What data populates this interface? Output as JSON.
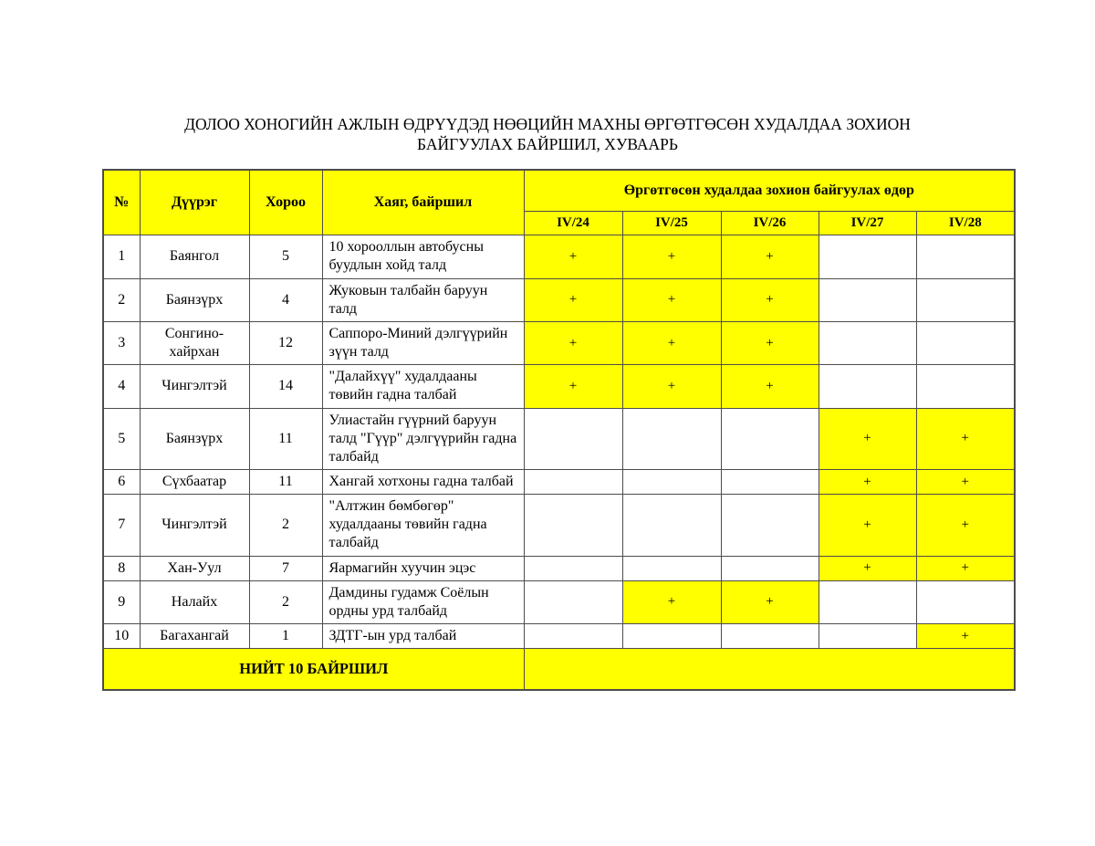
{
  "title": "ДОЛОО ХОНОГИЙН АЖЛЫН ӨДРҮҮДЭД НӨӨЦИЙН МАХНЫ ӨРГӨТГӨСӨН ХУДАЛДАА ЗОХИОН БАЙГУУЛАХ БАЙРШИЛ, ХУВААРЬ",
  "table": {
    "columns": {
      "no": "№",
      "district": "Дүүрэг",
      "khoroo": "Хороо",
      "address": "Хаяг, байршил",
      "days_group": "Өргөтгөсөн худалдаа зохион байгуулах өдөр"
    },
    "day_columns": [
      "IV/24",
      "IV/25",
      "IV/26",
      "IV/27",
      "IV/28"
    ],
    "mark_symbol": "+",
    "rows": [
      {
        "no": "1",
        "district": "Баянгол",
        "khoroo": "5",
        "address": "10 хорооллын автобусны буудлын хойд талд",
        "days": [
          "+",
          "+",
          "+",
          "",
          ""
        ]
      },
      {
        "no": "2",
        "district": "Баянзүрх",
        "khoroo": "4",
        "address": "Жуковын талбайн баруун талд",
        "days": [
          "+",
          "+",
          "+",
          "",
          ""
        ]
      },
      {
        "no": "3",
        "district": "Сонгино-хайрхан",
        "khoroo": "12",
        "address": "Саппоро-Миний дэлгүүрийн зүүн талд",
        "days": [
          "+",
          "+",
          "+",
          "",
          ""
        ]
      },
      {
        "no": "4",
        "district": "Чингэлтэй",
        "khoroo": "14",
        "address": "\"Далайхүү\" худалдааны төвийн гадна талбай",
        "days": [
          "+",
          "+",
          "+",
          "",
          ""
        ]
      },
      {
        "no": "5",
        "district": "Баянзүрх",
        "khoroo": "11",
        "address": "Улиастайн гүүрний баруун талд \"Гүүр\" дэлгүүрийн гадна талбайд",
        "days": [
          "",
          "",
          "",
          "+",
          "+"
        ]
      },
      {
        "no": "6",
        "district": "Сүхбаатар",
        "khoroo": "11",
        "address": "Хангай хотхоны гадна талбай",
        "days": [
          "",
          "",
          "",
          "+",
          "+"
        ]
      },
      {
        "no": "7",
        "district": "Чингэлтэй",
        "khoroo": "2",
        "address": "\"Алтжин бөмбөгөр\" худалдааны төвийн гадна талбайд",
        "days": [
          "",
          "",
          "",
          "+",
          "+"
        ]
      },
      {
        "no": "8",
        "district": "Хан-Уул",
        "khoroo": "7",
        "address": "Яармагийн хуучин эцэс",
        "days": [
          "",
          "",
          "",
          "+",
          "+"
        ]
      },
      {
        "no": "9",
        "district": "Налайх",
        "khoroo": "2",
        "address": "Дамдины гудамж Соёлын ордны урд талбайд",
        "days": [
          "",
          "+",
          "+",
          "",
          ""
        ]
      },
      {
        "no": "10",
        "district": "Багахангай",
        "khoroo": "1",
        "address": "ЗДТГ-ын урд талбай",
        "days": [
          "",
          "",
          "",
          "",
          "+"
        ]
      }
    ],
    "footer": {
      "label": "НИЙТ 10 БАЙРШИЛ"
    }
  },
  "colors": {
    "highlight": "#FFFF00",
    "border": "#4d4d4d",
    "text": "#000000"
  }
}
